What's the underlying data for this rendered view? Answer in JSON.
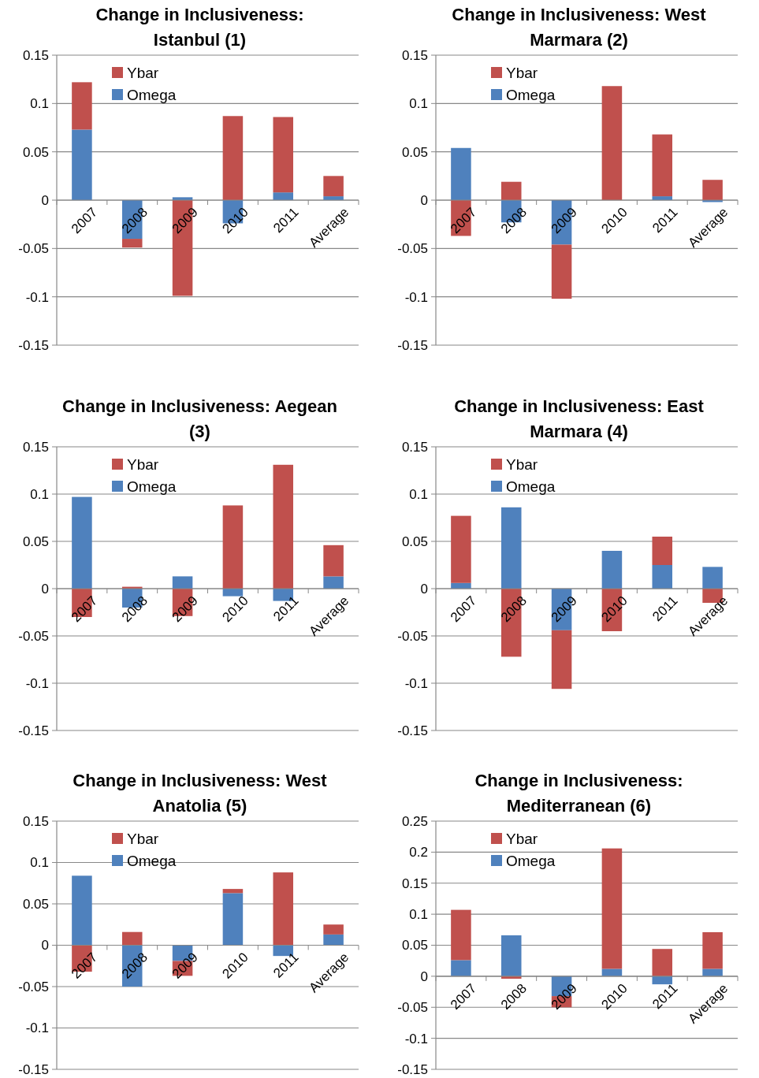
{
  "chart_data": [
    {
      "type": "bar",
      "title": "Change in Inclusiveness: Istanbul (1)",
      "categories": [
        "2007",
        "2008",
        "2009",
        "2010",
        "2011",
        "Average"
      ],
      "stacked": true,
      "grid": "y",
      "legend": "top left",
      "ylim": [
        -0.15,
        0.15
      ],
      "yticks": [
        -0.15,
        -0.1,
        -0.05,
        0,
        0.05,
        0.1,
        0.15
      ],
      "series": [
        {
          "name": "Omega",
          "color": "#4f81bd",
          "values": [
            0.073,
            -0.04,
            0.003,
            -0.024,
            0.008,
            0.004
          ]
        },
        {
          "name": "Ybar",
          "color": "#c0504d",
          "values": [
            0.049,
            -0.009,
            -0.099,
            0.087,
            0.078,
            0.021
          ]
        }
      ]
    },
    {
      "type": "bar",
      "title": "Change in Inclusiveness: West Marmara (2)",
      "categories": [
        "2007",
        "2008",
        "2009",
        "2010",
        "2011",
        "Average"
      ],
      "stacked": true,
      "grid": "y",
      "legend": "top left",
      "ylim": [
        -0.15,
        0.15
      ],
      "yticks": [
        -0.15,
        -0.1,
        -0.05,
        0,
        0.05,
        0.1,
        0.15
      ],
      "series": [
        {
          "name": "Omega",
          "color": "#4f81bd",
          "values": [
            0.054,
            -0.023,
            -0.046,
            0,
            0.004,
            -0.002
          ]
        },
        {
          "name": "Ybar",
          "color": "#c0504d",
          "values": [
            -0.037,
            0.019,
            -0.056,
            0.118,
            0.064,
            0.021
          ]
        }
      ]
    },
    {
      "type": "bar",
      "title": "Change in Inclusiveness: Aegean (3)",
      "categories": [
        "2007",
        "2008",
        "2009",
        "2010",
        "2011",
        "Average"
      ],
      "stacked": true,
      "grid": "y",
      "legend": "top left",
      "ylim": [
        -0.15,
        0.15
      ],
      "yticks": [
        -0.15,
        -0.1,
        -0.05,
        0,
        0.05,
        0.1,
        0.15
      ],
      "series": [
        {
          "name": "Omega",
          "color": "#4f81bd",
          "values": [
            0.097,
            -0.02,
            0.013,
            -0.008,
            -0.013,
            0.013
          ]
        },
        {
          "name": "Ybar",
          "color": "#c0504d",
          "values": [
            -0.03,
            0.002,
            -0.029,
            0.088,
            0.131,
            0.033
          ]
        }
      ]
    },
    {
      "type": "bar",
      "title": "Change in Inclusiveness: East Marmara (4)",
      "categories": [
        "2007",
        "2008",
        "2009",
        "2010",
        "2011",
        "Average"
      ],
      "stacked": true,
      "grid": "y",
      "legend": "top left",
      "ylim": [
        -0.15,
        0.15
      ],
      "yticks": [
        -0.15,
        -0.1,
        -0.05,
        0,
        0.05,
        0.1,
        0.15
      ],
      "series": [
        {
          "name": "Omega",
          "color": "#4f81bd",
          "values": [
            0.006,
            0.086,
            -0.044,
            0.04,
            0.025,
            0.023
          ]
        },
        {
          "name": "Ybar",
          "color": "#c0504d",
          "values": [
            0.071,
            -0.072,
            -0.062,
            -0.045,
            0.03,
            -0.015
          ]
        }
      ]
    },
    {
      "type": "bar",
      "title": "Change in Inclusiveness: West Anatolia (5)",
      "categories": [
        "2007",
        "2008",
        "2009",
        "2010",
        "2011",
        "Average"
      ],
      "stacked": true,
      "grid": "y",
      "legend": "top left",
      "ylim": [
        -0.15,
        0.15
      ],
      "yticks": [
        -0.15,
        -0.1,
        -0.05,
        0,
        0.05,
        0.1,
        0.15
      ],
      "series": [
        {
          "name": "Omega",
          "color": "#4f81bd",
          "values": [
            0.084,
            -0.05,
            -0.019,
            0.063,
            -0.013,
            0.013
          ]
        },
        {
          "name": "Ybar",
          "color": "#c0504d",
          "values": [
            -0.032,
            0.016,
            -0.018,
            0.005,
            0.088,
            0.012
          ]
        }
      ]
    },
    {
      "type": "bar",
      "title": "Change in Inclusiveness: Mediterranean (6)",
      "categories": [
        "2007",
        "2008",
        "2009",
        "2010",
        "2011",
        "Average"
      ],
      "stacked": true,
      "grid": "y",
      "legend": "top left",
      "ylim": [
        -0.15,
        0.25
      ],
      "yticks": [
        -0.15,
        -0.1,
        -0.05,
        0,
        0.05,
        0.1,
        0.15,
        0.2,
        0.25
      ],
      "series": [
        {
          "name": "Omega",
          "color": "#4f81bd",
          "values": [
            0.026,
            0.066,
            -0.032,
            0.012,
            -0.013,
            0.012
          ]
        },
        {
          "name": "Ybar",
          "color": "#c0504d",
          "values": [
            0.081,
            -0.004,
            -0.018,
            0.194,
            0.044,
            0.059
          ]
        }
      ]
    }
  ]
}
